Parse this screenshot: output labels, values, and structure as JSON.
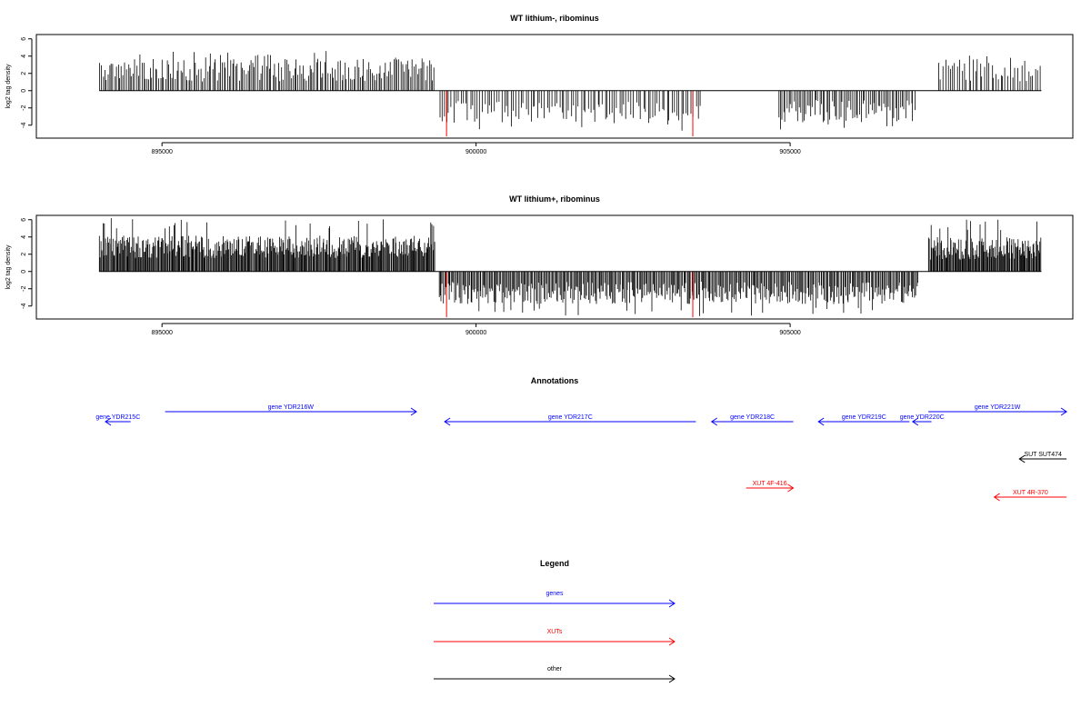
{
  "chart_data": [
    {
      "type": "bar",
      "title": "WT lithium-, ribominus",
      "ylabel": "log2 tag density",
      "xlim": [
        893000,
        909500
      ],
      "ylim": [
        -5.5,
        6.5
      ],
      "x_ticks": [
        "895000",
        "900000",
        "905000"
      ],
      "y_ticks": [
        "6",
        "4",
        "2",
        "0",
        "-2",
        "-4"
      ],
      "tracks": [
        {
          "strand": "plus",
          "start": 894000,
          "end": 899350,
          "bars": 200,
          "mean": 2.5,
          "max": 4.6
        },
        {
          "strand": "minus",
          "start": 899400,
          "end": 903600,
          "bars": 110,
          "mean": -2.6,
          "max": -4.8
        },
        {
          "strand": "minus",
          "start": 904800,
          "end": 907000,
          "bars": 80,
          "mean": -2.5,
          "max": -4.6
        },
        {
          "strand": "plus",
          "start": 907350,
          "end": 909000,
          "bars": 45,
          "mean": 2.5,
          "max": 4.3
        }
      ],
      "highlights": [
        {
          "x": 899530,
          "value": -5.3,
          "color": "#ff0000"
        },
        {
          "x": 903450,
          "value": -5.3,
          "color": "#ff0000"
        }
      ]
    },
    {
      "type": "bar",
      "title": "WT lithium+, ribominus",
      "ylabel": "log2 tag density",
      "xlim": [
        893000,
        909500
      ],
      "ylim": [
        -5.5,
        6.5
      ],
      "x_ticks": [
        "895000",
        "900000",
        "905000"
      ],
      "y_ticks": [
        "6",
        "4",
        "2",
        "0",
        "-2",
        "-4"
      ],
      "tracks": [
        {
          "strand": "plus",
          "start": 894000,
          "end": 899350,
          "bars": 400,
          "mean": 3.0,
          "max": 6.2
        },
        {
          "strand": "minus",
          "start": 899400,
          "end": 907050,
          "bars": 420,
          "mean": -2.6,
          "max": -5.2
        },
        {
          "strand": "plus",
          "start": 907200,
          "end": 909000,
          "bars": 140,
          "mean": 2.8,
          "max": 6.0
        }
      ],
      "highlights": [
        {
          "x": 899530,
          "value": -5.3,
          "color": "#ff0000"
        },
        {
          "x": 903450,
          "value": -5.3,
          "color": "#ff0000"
        }
      ]
    }
  ],
  "annotations": {
    "title": "Annotations",
    "items": [
      {
        "label": "gene YDR215C",
        "start": 894500,
        "end": 894100,
        "color": "#0000ff",
        "row": 1
      },
      {
        "label": "gene YDR216W",
        "start": 895050,
        "end": 899050,
        "color": "#0000ff",
        "row": 0
      },
      {
        "label": "gene YDR217C",
        "start": 903500,
        "end": 899500,
        "color": "#0000ff",
        "row": 1
      },
      {
        "label": "gene YDR218C",
        "start": 905050,
        "end": 903750,
        "color": "#0000ff",
        "row": 1
      },
      {
        "label": "gene YDR219C",
        "start": 906900,
        "end": 905450,
        "color": "#0000ff",
        "row": 1
      },
      {
        "label": "gene YDR220C",
        "start": 907250,
        "end": 906950,
        "color": "#0000ff",
        "row": 1
      },
      {
        "label": "gene YDR221W",
        "start": 907200,
        "end": 909400,
        "color": "#0000ff",
        "row": 0
      },
      {
        "label": "SUT SUT474",
        "start": 909400,
        "end": 908650,
        "color": "#000000",
        "row": 2
      },
      {
        "label": "XUT 4F-416",
        "start": 904300,
        "end": 905050,
        "color": "#ff0000",
        "row": 3
      },
      {
        "label": "XUT 4R-370",
        "start": 909400,
        "end": 908250,
        "color": "#ff0000",
        "row": 4
      }
    ]
  },
  "legend": {
    "title": "Legend",
    "entries": [
      {
        "label": "genes",
        "color": "#0000ff"
      },
      {
        "label": "XUTs",
        "color": "#ff0000"
      },
      {
        "label": "other",
        "color": "#000000"
      }
    ]
  }
}
